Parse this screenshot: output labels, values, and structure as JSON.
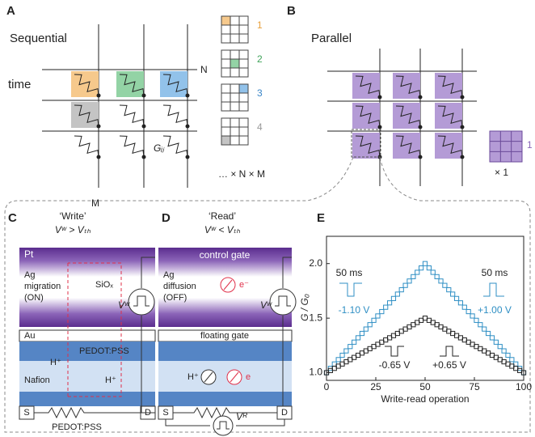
{
  "panel_a": {
    "label": "A",
    "title": "Sequential",
    "time": "time",
    "row_label": "N",
    "col_label": "M",
    "weight": "Gᵢⱼ",
    "steps": [
      "1",
      "2",
      "3",
      "4"
    ],
    "multiplier": "… × N × M"
  },
  "panel_b": {
    "label": "B",
    "title": "Parallel",
    "step": "1",
    "multiplier": "× 1"
  },
  "panel_c": {
    "label": "C",
    "title": "‘Write’",
    "condition": "Vʷ > Vₜₕ",
    "top_electrode": "Pt",
    "state": [
      "Ag",
      "migration",
      "(ON)"
    ],
    "oxide": "SiOₓ",
    "middle_electrode": "Au",
    "channel_top": "PEDOT:PSS",
    "electrolyte": "Nafion",
    "ion_1": "H⁺",
    "ion_2": "H⁺",
    "source": "S",
    "drain": "D",
    "channel_bottom": "PEDOT:PSS",
    "voltage": "Vʷ"
  },
  "panel_d": {
    "label": "D",
    "title": "‘Read’",
    "condition": "Vʷ < Vₜₕ",
    "top_electrode": "control gate",
    "state": [
      "Ag",
      "diffusion",
      "(OFF)"
    ],
    "electron_1": "e⁻",
    "middle_electrode": "floating gate",
    "ion": "H⁺",
    "electron_2": "e",
    "source": "S",
    "drain": "D",
    "read_voltage": "Vᴿ",
    "voltage": "Vʷ"
  },
  "chart_data": {
    "type": "scatter",
    "label": "E",
    "xlabel": "Write-read operation",
    "ylabel": "G / G₀",
    "marker": "open-square",
    "annotations": [
      "50 ms",
      "-1.10 V",
      "50 ms",
      "+1.00 V",
      "-0.65 V",
      "+0.65 V"
    ],
    "x": [
      0,
      2,
      4,
      6,
      8,
      10,
      12,
      14,
      16,
      18,
      20,
      22,
      24,
      26,
      28,
      30,
      32,
      34,
      36,
      38,
      40,
      42,
      44,
      46,
      48,
      50,
      52,
      54,
      56,
      58,
      60,
      62,
      64,
      66,
      68,
      70,
      72,
      74,
      76,
      78,
      80,
      82,
      84,
      86,
      88,
      90,
      92,
      94,
      96,
      98,
      100
    ],
    "series": [
      {
        "color": "#2f8fc4",
        "values": [
          1.0,
          1.04,
          1.08,
          1.12,
          1.16,
          1.2,
          1.24,
          1.28,
          1.32,
          1.36,
          1.4,
          1.44,
          1.48,
          1.52,
          1.56,
          1.6,
          1.64,
          1.68,
          1.72,
          1.76,
          1.8,
          1.84,
          1.88,
          1.92,
          1.96,
          2.0,
          1.96,
          1.92,
          1.88,
          1.84,
          1.8,
          1.76,
          1.72,
          1.68,
          1.64,
          1.6,
          1.56,
          1.52,
          1.48,
          1.44,
          1.4,
          1.36,
          1.32,
          1.28,
          1.24,
          1.2,
          1.16,
          1.12,
          1.08,
          1.04,
          1.0
        ]
      },
      {
        "color": "#222222",
        "values": [
          1.0,
          1.02,
          1.04,
          1.06,
          1.08,
          1.1,
          1.12,
          1.14,
          1.16,
          1.18,
          1.2,
          1.22,
          1.24,
          1.26,
          1.28,
          1.3,
          1.32,
          1.34,
          1.36,
          1.38,
          1.4,
          1.42,
          1.44,
          1.46,
          1.48,
          1.5,
          1.48,
          1.46,
          1.44,
          1.42,
          1.4,
          1.38,
          1.36,
          1.34,
          1.32,
          1.3,
          1.28,
          1.26,
          1.24,
          1.22,
          1.2,
          1.18,
          1.16,
          1.14,
          1.12,
          1.1,
          1.08,
          1.06,
          1.04,
          1.02,
          1.0
        ]
      }
    ],
    "xlim": [
      0,
      100
    ],
    "xticks": [
      0,
      25,
      50,
      75,
      100
    ],
    "ylim": [
      0.93,
      2.25
    ],
    "yticks": [
      {
        "value": 1,
        "label": "1.0"
      },
      1.5,
      {
        "value": 2,
        "label": "2.0"
      }
    ]
  }
}
